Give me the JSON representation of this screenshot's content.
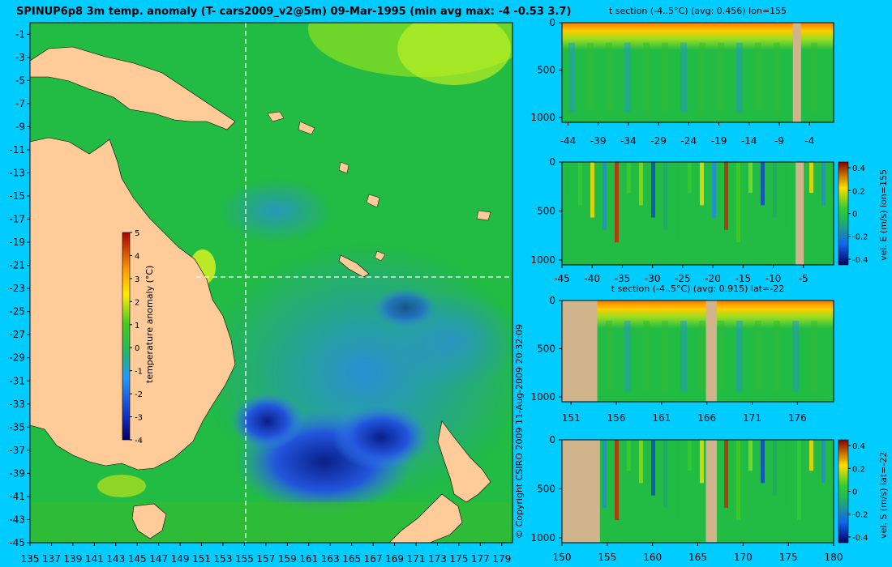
{
  "page": {
    "title": "SPINUP6p8 3m temp. anomaly (T- cars2009_v2@5m) 09-Mar-1995 (min avg max: -4 -0.53 3.7)",
    "copyright": "© Copyright CSIRO 2009   11-Aug-2009 20:32:09"
  },
  "colors": {
    "background": "#00ccff",
    "land": "#ffcc99",
    "section_land": "#d2b48c",
    "ocean_base": "#22bb44",
    "cold": "#2266ee",
    "warm": "#ffcc00"
  },
  "chart_data": [
    {
      "type": "heatmap",
      "name": "map",
      "title": "SPINUP6p8 3m temp. anomaly (T- cars2009_v2@5m) 09-Mar-1995 (min avg max: -4 -0.53 3.7)",
      "xlim": [
        135,
        180
      ],
      "ylim": [
        -45,
        0
      ],
      "x_ticks": [
        "135",
        "137",
        "139",
        "141",
        "143",
        "145",
        "147",
        "149",
        "151",
        "153",
        "155",
        "157",
        "159",
        "161",
        "163",
        "165",
        "167",
        "169",
        "171",
        "173",
        "175",
        "177",
        "179"
      ],
      "y_ticks": [
        "-1",
        "-3",
        "-5",
        "-7",
        "-9",
        "-11",
        "-13",
        "-15",
        "-17",
        "-19",
        "-21",
        "-23",
        "-25",
        "-27",
        "-29",
        "-31",
        "-33",
        "-35",
        "-37",
        "-39",
        "-41",
        "-43",
        "-45"
      ],
      "colorbar": {
        "label": "temperature anomaly (°C)",
        "range": [
          -4,
          5
        ],
        "ticks": [
          "5",
          "4",
          "3",
          "2",
          "1",
          "0",
          "-1",
          "-2",
          "-3",
          "-4"
        ]
      },
      "section_lines": {
        "lon": 155,
        "lat": -22
      },
      "stats": {
        "min": -4,
        "avg": -0.53,
        "max": 3.7
      }
    },
    {
      "type": "heatmap",
      "name": "t-section-lon155",
      "title": "t section (-4..5°C) (avg: 0.456) lon=155",
      "x_ticks": [
        "-44",
        "-39",
        "-34",
        "-29",
        "-24",
        "-19",
        "-14",
        "-9",
        "-4"
      ],
      "y_ticks": [
        "0",
        "500",
        "1000"
      ],
      "xlim": [
        -45,
        0
      ],
      "ylim": [
        1050,
        0
      ]
    },
    {
      "type": "heatmap",
      "name": "vel-e-section-lon155",
      "colorbar_label": "vel. E (m/s) lon=155",
      "colorbar_ticks": [
        "0.4",
        "0.2",
        "0",
        "-0.2",
        "-0.4"
      ],
      "x_ticks": [
        "-45",
        "-40",
        "-35",
        "-30",
        "-25",
        "-20",
        "-15",
        "-10",
        "-5"
      ],
      "y_ticks": [
        "0",
        "500",
        "1000"
      ],
      "xlim": [
        -45,
        0
      ],
      "ylim": [
        1050,
        0
      ]
    },
    {
      "type": "heatmap",
      "name": "t-section-lat-22",
      "title": "t section (-4..5°C) (avg: 0.915) lat=-22",
      "x_ticks": [
        "151",
        "156",
        "161",
        "166",
        "171",
        "176"
      ],
      "y_ticks": [
        "0",
        "500",
        "1000"
      ],
      "xlim": [
        150,
        180
      ],
      "ylim": [
        1050,
        0
      ]
    },
    {
      "type": "heatmap",
      "name": "vel-s-section-lat-22",
      "colorbar_label": "vel. S (m/s) lat=-22",
      "colorbar_ticks": [
        "0.4",
        "0.2",
        "0",
        "-0.2",
        "-0.4"
      ],
      "x_ticks": [
        "150",
        "155",
        "160",
        "165",
        "170",
        "175",
        "180"
      ],
      "y_ticks": [
        "0",
        "500",
        "1000"
      ],
      "xlim": [
        150,
        180
      ],
      "ylim": [
        1050,
        0
      ]
    }
  ]
}
